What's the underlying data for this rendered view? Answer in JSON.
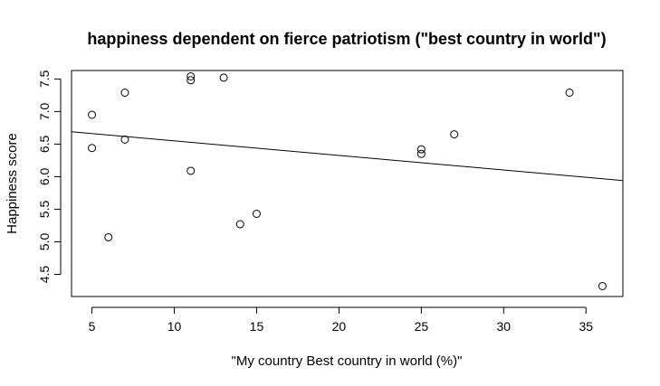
{
  "chart_data": {
    "type": "scatter",
    "title": "happiness dependent on fierce patriotism (\"best country in world\")",
    "xlabel": "\"My country Best country in world (%)\"",
    "ylabel": "Happiness score",
    "xlim": [
      3.76,
      37.24
    ],
    "ylim": [
      4.16,
      7.63
    ],
    "xticks": [
      5,
      10,
      15,
      20,
      25,
      30,
      35
    ],
    "yticks": [
      4.5,
      5.0,
      5.5,
      6.0,
      6.5,
      7.0,
      7.5
    ],
    "ytick_labels": [
      "4.5",
      "5.0",
      "5.5",
      "6.0",
      "6.5",
      "7.0",
      "7.5"
    ],
    "grid": false,
    "marker": "open-circle",
    "points": [
      {
        "x": 5,
        "y": 6.95
      },
      {
        "x": 5,
        "y": 6.44
      },
      {
        "x": 6,
        "y": 5.07
      },
      {
        "x": 7,
        "y": 7.29
      },
      {
        "x": 7,
        "y": 6.57
      },
      {
        "x": 11,
        "y": 7.54
      },
      {
        "x": 11,
        "y": 7.48
      },
      {
        "x": 11,
        "y": 6.09
      },
      {
        "x": 13,
        "y": 7.52
      },
      {
        "x": 14,
        "y": 5.27
      },
      {
        "x": 15,
        "y": 5.43
      },
      {
        "x": 25,
        "y": 6.42
      },
      {
        "x": 25,
        "y": 6.35
      },
      {
        "x": 27,
        "y": 6.65
      },
      {
        "x": 34,
        "y": 7.29
      },
      {
        "x": 36,
        "y": 4.32
      }
    ],
    "regression_line": {
      "x1": 3.76,
      "y1": 6.69,
      "x2": 37.24,
      "y2": 5.94
    }
  }
}
